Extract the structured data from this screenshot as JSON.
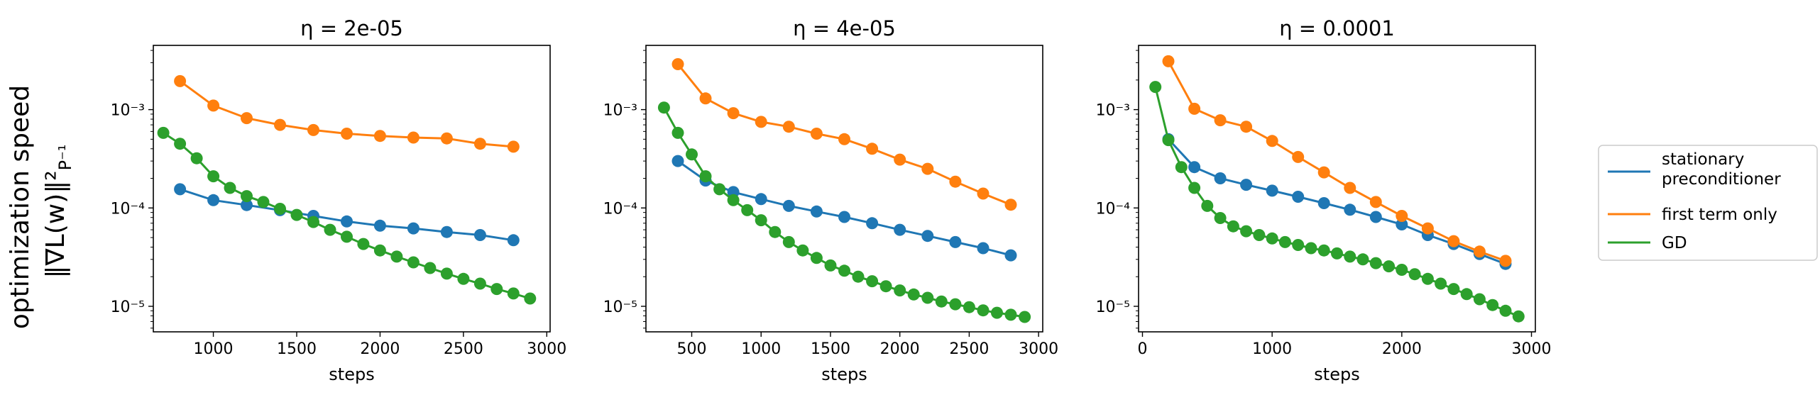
{
  "figure": {
    "ylabel_line1": "optimization speed",
    "ylabel_line2": "‖∇L(w)‖²",
    "ylabel_line2_sub": "P⁻¹"
  },
  "legend": {
    "items": [
      {
        "label_lines": [
          "stationary",
          "preconditioner"
        ],
        "color": "#1f77b4"
      },
      {
        "label_lines": [
          "first term only"
        ],
        "color": "#ff7f0e"
      },
      {
        "label_lines": [
          "GD"
        ],
        "color": "#2ca02c"
      }
    ]
  },
  "chart_data": [
    {
      "type": "line",
      "title": "η = 2e-05",
      "xlabel": "steps",
      "ylabel": "optimization speed ‖∇L(w)‖²_P⁻¹",
      "yscale": "log",
      "xlim": [
        640,
        3020
      ],
      "ylim": [
        5.5e-06,
        0.0045
      ],
      "xticks": [
        1000,
        1500,
        2000,
        2500,
        3000
      ],
      "xtick_labels": [
        "1000",
        "1500",
        "2000",
        "2500",
        "3000"
      ],
      "yticks": [
        1e-05,
        0.0001,
        0.001
      ],
      "ytick_labels": [
        "10⁻⁵",
        "10⁻⁴",
        "10⁻³"
      ],
      "series": [
        {
          "name": "stationary preconditioner",
          "color": "#1f77b4",
          "x": [
            800,
            1000,
            1200,
            1400,
            1600,
            1800,
            2000,
            2200,
            2400,
            2600,
            2800
          ],
          "y": [
            0.000155,
            0.00012,
            0.000107,
            9.5e-05,
            8.3e-05,
            7.3e-05,
            6.6e-05,
            6.2e-05,
            5.7e-05,
            5.3e-05,
            4.7e-05
          ]
        },
        {
          "name": "first term only",
          "color": "#ff7f0e",
          "x": [
            800,
            1000,
            1200,
            1400,
            1600,
            1800,
            2000,
            2200,
            2400,
            2600,
            2800
          ],
          "y": [
            0.00195,
            0.0011,
            0.00082,
            0.0007,
            0.00062,
            0.00057,
            0.00054,
            0.00052,
            0.00051,
            0.00045,
            0.00042
          ]
        },
        {
          "name": "GD",
          "color": "#2ca02c",
          "x": [
            700,
            800,
            900,
            1000,
            1100,
            1200,
            1300,
            1400,
            1500,
            1600,
            1700,
            1800,
            1900,
            2000,
            2100,
            2200,
            2300,
            2400,
            2500,
            2600,
            2700,
            2800,
            2900
          ],
          "y": [
            0.00058,
            0.00045,
            0.00032,
            0.00021,
            0.00016,
            0.000132,
            0.000115,
            9.8e-05,
            8.5e-05,
            7.2e-05,
            6e-05,
            5.1e-05,
            4.3e-05,
            3.7e-05,
            3.2e-05,
            2.8e-05,
            2.45e-05,
            2.15e-05,
            1.9e-05,
            1.7e-05,
            1.5e-05,
            1.35e-05,
            1.2e-05
          ]
        }
      ]
    },
    {
      "type": "line",
      "title": "η = 4e-05",
      "xlabel": "steps",
      "ylabel": "",
      "yscale": "log",
      "xlim": [
        170,
        3030
      ],
      "ylim": [
        5.5e-06,
        0.0045
      ],
      "xticks": [
        500,
        1000,
        1500,
        2000,
        2500,
        3000
      ],
      "xtick_labels": [
        "500",
        "1000",
        "1500",
        "2000",
        "2500",
        "3000"
      ],
      "yticks": [
        1e-05,
        0.0001,
        0.001
      ],
      "ytick_labels": [
        "10⁻⁵",
        "10⁻⁴",
        "10⁻³"
      ],
      "series": [
        {
          "name": "stationary preconditioner",
          "color": "#1f77b4",
          "x": [
            400,
            600,
            800,
            1000,
            1200,
            1400,
            1600,
            1800,
            2000,
            2200,
            2400,
            2600,
            2800
          ],
          "y": [
            0.0003,
            0.00019,
            0.000145,
            0.000123,
            0.000105,
            9.2e-05,
            8.1e-05,
            7e-05,
            6e-05,
            5.2e-05,
            4.5e-05,
            3.9e-05,
            3.3e-05
          ]
        },
        {
          "name": "first term only",
          "color": "#ff7f0e",
          "x": [
            400,
            600,
            800,
            1000,
            1200,
            1400,
            1600,
            1800,
            2000,
            2200,
            2400,
            2600,
            2800
          ],
          "y": [
            0.0029,
            0.0013,
            0.00092,
            0.00075,
            0.00067,
            0.00057,
            0.0005,
            0.0004,
            0.00031,
            0.00025,
            0.000185,
            0.00014,
            0.000108
          ]
        },
        {
          "name": "GD",
          "color": "#2ca02c",
          "x": [
            300,
            400,
            500,
            600,
            700,
            800,
            900,
            1000,
            1100,
            1200,
            1300,
            1400,
            1500,
            1600,
            1700,
            1800,
            1900,
            2000,
            2100,
            2200,
            2300,
            2400,
            2500,
            2600,
            2700,
            2800,
            2900
          ],
          "y": [
            0.00105,
            0.00058,
            0.00035,
            0.00021,
            0.000155,
            0.00012,
            9.5e-05,
            7.5e-05,
            5.7e-05,
            4.5e-05,
            3.7e-05,
            3.1e-05,
            2.6e-05,
            2.3e-05,
            2e-05,
            1.8e-05,
            1.6e-05,
            1.45e-05,
            1.32e-05,
            1.22e-05,
            1.12e-05,
            1.05e-05,
            9.8e-06,
            9.1e-06,
            8.6e-06,
            8.2e-06,
            7.8e-06
          ]
        }
      ]
    },
    {
      "type": "line",
      "title": "η = 0.0001",
      "xlabel": "steps",
      "ylabel": "",
      "yscale": "log",
      "xlim": [
        -30,
        3030
      ],
      "ylim": [
        5.5e-06,
        0.0045
      ],
      "xticks": [
        0,
        1000,
        2000,
        3000
      ],
      "xtick_labels": [
        "0",
        "1000",
        "2000",
        "3000"
      ],
      "yticks": [
        1e-05,
        0.0001,
        0.001
      ],
      "ytick_labels": [
        "10⁻⁵",
        "10⁻⁴",
        "10⁻³"
      ],
      "series": [
        {
          "name": "stationary preconditioner",
          "color": "#1f77b4",
          "x": [
            200,
            400,
            600,
            800,
            1000,
            1200,
            1400,
            1600,
            1800,
            2000,
            2200,
            2400,
            2600,
            2800
          ],
          "y": [
            0.0005,
            0.00026,
            0.0002,
            0.000172,
            0.00015,
            0.00013,
            0.000112,
            9.6e-05,
            8.1e-05,
            6.8e-05,
            5.3e-05,
            4.3e-05,
            3.4e-05,
            2.7e-05
          ]
        },
        {
          "name": "first term only",
          "color": "#ff7f0e",
          "x": [
            200,
            400,
            600,
            800,
            1000,
            1200,
            1400,
            1600,
            1800,
            2000,
            2200,
            2400,
            2600,
            2800
          ],
          "y": [
            0.0031,
            0.00102,
            0.00078,
            0.00067,
            0.00048,
            0.00033,
            0.00023,
            0.00016,
            0.000115,
            8.3e-05,
            6.2e-05,
            4.6e-05,
            3.6e-05,
            2.9e-05
          ]
        },
        {
          "name": "GD",
          "color": "#2ca02c",
          "x": [
            100,
            200,
            300,
            400,
            500,
            600,
            700,
            800,
            900,
            1000,
            1100,
            1200,
            1300,
            1400,
            1500,
            1600,
            1700,
            1800,
            1900,
            2000,
            2100,
            2200,
            2300,
            2400,
            2500,
            2600,
            2700,
            2800,
            2900
          ],
          "y": [
            0.0017,
            0.00049,
            0.00026,
            0.00016,
            0.000105,
            7.9e-05,
            6.5e-05,
            5.8e-05,
            5.3e-05,
            4.9e-05,
            4.5e-05,
            4.2e-05,
            3.9e-05,
            3.7e-05,
            3.45e-05,
            3.2e-05,
            3e-05,
            2.75e-05,
            2.55e-05,
            2.35e-05,
            2.12e-05,
            1.9e-05,
            1.7e-05,
            1.5e-05,
            1.33e-05,
            1.18e-05,
            1.03e-05,
            9e-06,
            7.9e-06
          ]
        }
      ]
    }
  ]
}
